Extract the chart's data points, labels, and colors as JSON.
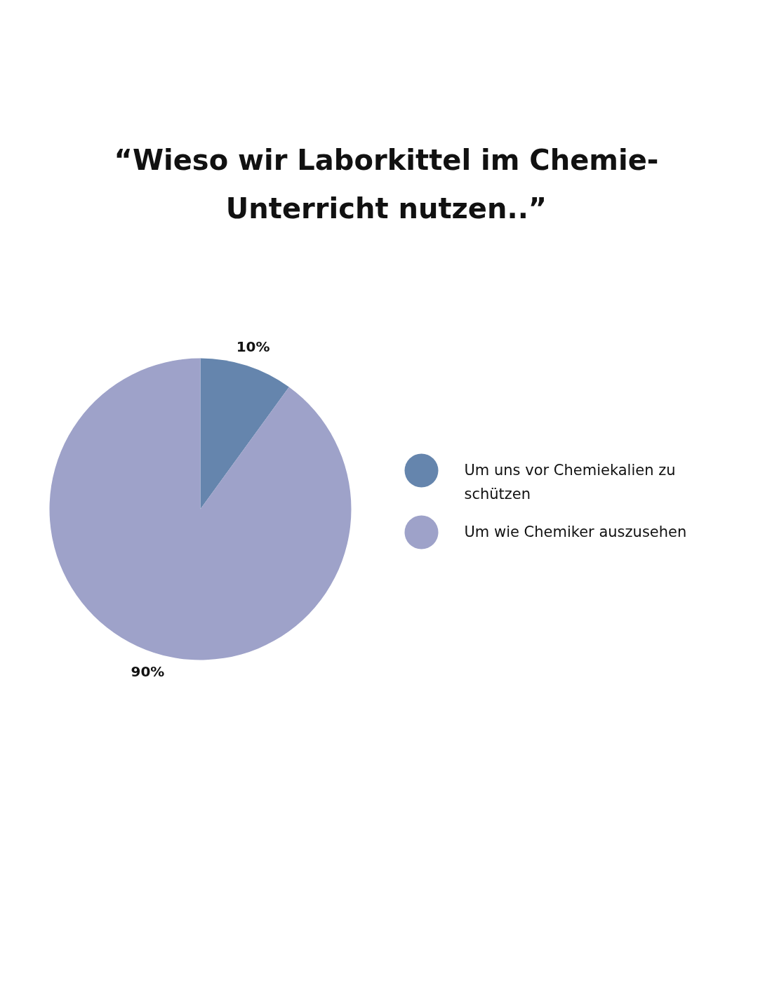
{
  "chart_data": {
    "type": "pie",
    "title": "“Wieso wir Laborkittel im Chemie-Unterricht nutzen..”",
    "categories": [
      "Um uns vor Chemiekalien zu schützen",
      "Um wie Chemiker auszusehen"
    ],
    "values": [
      10,
      90
    ],
    "colors": [
      "#6585ad",
      "#9ea2c9"
    ],
    "value_labels": [
      "10%",
      "90%"
    ],
    "legend": "right"
  }
}
